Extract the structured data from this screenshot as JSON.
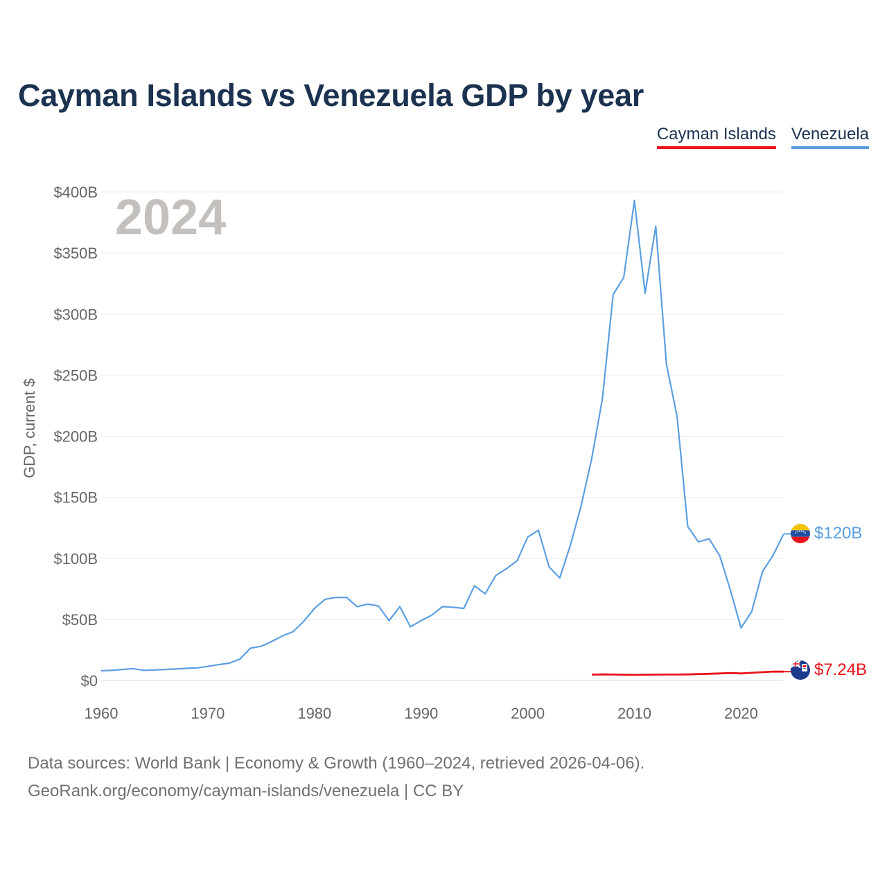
{
  "chart_data": {
    "type": "line",
    "title": "Cayman Islands vs Venezuela GDP by year",
    "xlabel": "",
    "ylabel": "GDP, current $",
    "xlim": [
      1960,
      2024
    ],
    "ylim": [
      0,
      400
    ],
    "x_ticks": [
      1960,
      1970,
      1980,
      1990,
      2000,
      2010,
      2020
    ],
    "x_tick_labels": [
      "1960",
      "1970",
      "1980",
      "1990",
      "2000",
      "2010",
      "2020"
    ],
    "y_ticks": [
      0,
      50,
      100,
      150,
      200,
      250,
      300,
      350,
      400
    ],
    "y_tick_labels": [
      "$0",
      "$50B",
      "$100B",
      "$150B",
      "$200B",
      "$250B",
      "$300B",
      "$350B",
      "$400B"
    ],
    "grid": true,
    "legend": "top-right",
    "current_year_label": "2024",
    "series": [
      {
        "name": "Cayman Islands",
        "color": "#e8141c",
        "end_label": "$7.24B",
        "points": [
          [
            2006,
            4.8
          ],
          [
            2007,
            5.0
          ],
          [
            2008,
            4.9
          ],
          [
            2009,
            4.7
          ],
          [
            2010,
            4.6
          ],
          [
            2011,
            4.7
          ],
          [
            2012,
            4.8
          ],
          [
            2013,
            4.9
          ],
          [
            2014,
            4.9
          ],
          [
            2015,
            5.0
          ],
          [
            2016,
            5.3
          ],
          [
            2017,
            5.5
          ],
          [
            2018,
            5.8
          ],
          [
            2019,
            6.1
          ],
          [
            2020,
            5.8
          ],
          [
            2021,
            6.3
          ],
          [
            2022,
            6.8
          ],
          [
            2023,
            7.3
          ],
          [
            2024,
            7.24
          ]
        ]
      },
      {
        "name": "Venezuela",
        "color": "#5b9fe0",
        "end_label": "$120B",
        "points": [
          [
            1960,
            8
          ],
          [
            1961,
            8.3
          ],
          [
            1962,
            9
          ],
          [
            1963,
            9.7
          ],
          [
            1964,
            8.3
          ],
          [
            1965,
            8.6
          ],
          [
            1966,
            9
          ],
          [
            1967,
            9.4
          ],
          [
            1968,
            10
          ],
          [
            1969,
            10.3
          ],
          [
            1970,
            11.5
          ],
          [
            1971,
            13
          ],
          [
            1972,
            14.2
          ],
          [
            1973,
            17.5
          ],
          [
            1974,
            26.5
          ],
          [
            1975,
            28
          ],
          [
            1976,
            32
          ],
          [
            1977,
            36.5
          ],
          [
            1978,
            40
          ],
          [
            1979,
            48.5
          ],
          [
            1980,
            59
          ],
          [
            1981,
            66.5
          ],
          [
            1982,
            68
          ],
          [
            1983,
            68
          ],
          [
            1984,
            60.5
          ],
          [
            1985,
            62.5
          ],
          [
            1986,
            61
          ],
          [
            1987,
            49
          ],
          [
            1988,
            60.5
          ],
          [
            1989,
            44
          ],
          [
            1990,
            49
          ],
          [
            1991,
            53.5
          ],
          [
            1992,
            60.5
          ],
          [
            1993,
            60
          ],
          [
            1994,
            59
          ],
          [
            1995,
            77.5
          ],
          [
            1996,
            71
          ],
          [
            1997,
            86
          ],
          [
            1998,
            91.5
          ],
          [
            1999,
            98
          ],
          [
            2000,
            117.5
          ],
          [
            2001,
            123
          ],
          [
            2002,
            93
          ],
          [
            2003,
            84
          ],
          [
            2004,
            111
          ],
          [
            2005,
            143
          ],
          [
            2006,
            182
          ],
          [
            2007,
            231
          ],
          [
            2008,
            316
          ],
          [
            2009,
            330
          ],
          [
            2010,
            393
          ],
          [
            2011,
            317
          ],
          [
            2012,
            372
          ],
          [
            2013,
            259
          ],
          [
            2014,
            216
          ],
          [
            2015,
            126
          ],
          [
            2016,
            113.5
          ],
          [
            2017,
            116
          ],
          [
            2018,
            102
          ],
          [
            2019,
            74
          ],
          [
            2020,
            43
          ],
          [
            2021,
            56.5
          ],
          [
            2022,
            89
          ],
          [
            2023,
            102.5
          ],
          [
            2024,
            120
          ]
        ]
      }
    ]
  },
  "legend": {
    "cayman_label": "Cayman Islands",
    "venezuela_label": "Venezuela"
  },
  "footer": {
    "line1": "Data sources: World Bank | Economy & Growth (1960–2024, retrieved 2026-04-06).",
    "line2": "GeoRank.org/economy/cayman-islands/venezuela | CC BY"
  }
}
